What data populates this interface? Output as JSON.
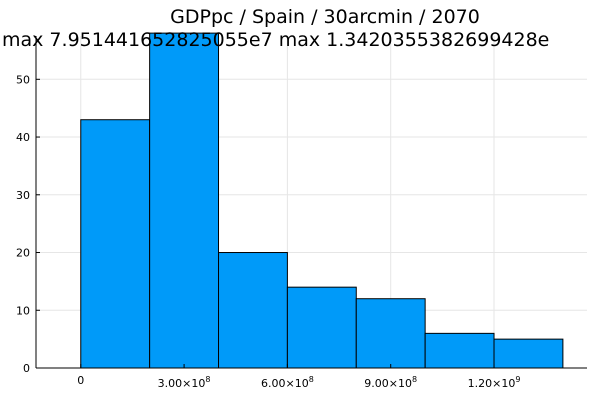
{
  "chart_data": {
    "type": "bar",
    "title": "GDPpc / Spain / 30arcmin / 2070",
    "subtitle": "max 7.951441652825055e7  max 1.3420355382699428e",
    "xlabel": "",
    "ylabel": "",
    "xlim": [
      -130000000.0,
      1470000000.0
    ],
    "ylim": [
      0,
      57.5
    ],
    "grid": true,
    "legend": "none",
    "bin_edges": [
      0,
      200000000,
      400000000,
      600000000,
      800000000,
      1000000000,
      1200000000,
      1400000000
    ],
    "values": [
      43,
      58,
      20,
      14,
      12,
      6,
      5
    ],
    "x_ticks": [
      {
        "value": 0,
        "base": "0",
        "exp": ""
      },
      {
        "value": 300000000,
        "base": "3.00×10",
        "exp": "8"
      },
      {
        "value": 600000000,
        "base": "6.00×10",
        "exp": "8"
      },
      {
        "value": 900000000,
        "base": "9.00×10",
        "exp": "8"
      },
      {
        "value": 1200000000,
        "base": "1.20×10",
        "exp": "9"
      }
    ],
    "y_ticks": [
      0,
      10,
      20,
      30,
      40,
      50
    ],
    "y_tick_labels": [
      "0",
      "10",
      "20",
      "30",
      "40",
      "50"
    ],
    "bar_color": "#009af9"
  }
}
